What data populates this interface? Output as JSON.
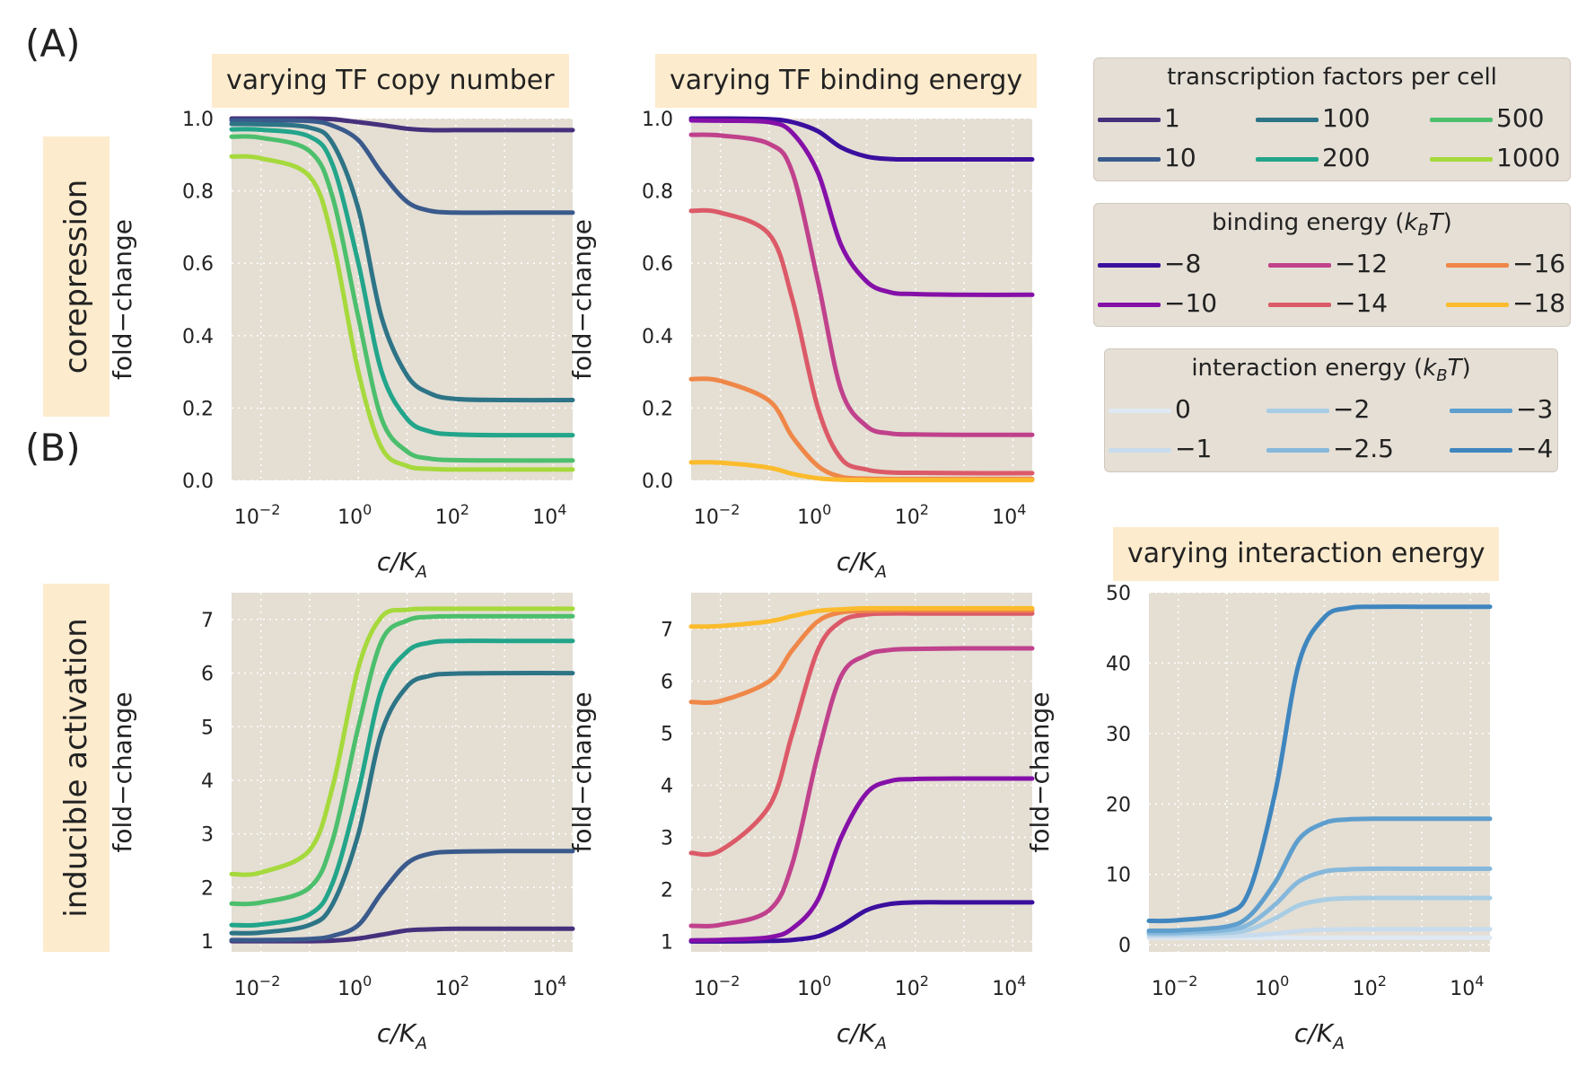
{
  "panel_labels": {
    "a": "(A)",
    "b": "(B)"
  },
  "row_labels": {
    "top": "corepression",
    "bottom": "inducible activation"
  },
  "column_titles": {
    "copy": "varying TF copy number",
    "binding": "varying TF binding energy",
    "interaction": "varying interaction energy"
  },
  "legends": {
    "tf": {
      "title": "transcription factors per cell",
      "items": [
        {
          "label": "1",
          "color": "#46307c"
        },
        {
          "label": "100",
          "color": "#2d7486"
        },
        {
          "label": "500",
          "color": "#4cbf6c"
        },
        {
          "label": "10",
          "color": "#3a5a8c"
        },
        {
          "label": "200",
          "color": "#22a58a"
        },
        {
          "label": "1000",
          "color": "#a6d93c"
        }
      ]
    },
    "binding": {
      "title": "binding energy (k_B T)",
      "title_pre": "binding energy (",
      "title_k": "k",
      "title_sub": "B",
      "title_t": "T",
      "title_post": ")",
      "items": [
        {
          "label": "−8",
          "color": "#3b0f9e"
        },
        {
          "label": "−12",
          "color": "#c0418c"
        },
        {
          "label": "−16",
          "color": "#ef8748"
        },
        {
          "label": "−10",
          "color": "#8510a8"
        },
        {
          "label": "−14",
          "color": "#dc5a68"
        },
        {
          "label": "−18",
          "color": "#fbbb2c"
        }
      ]
    },
    "interaction": {
      "title": "interaction energy (k_B T)",
      "title_pre": "interaction energy (",
      "title_k": "k",
      "title_sub": "B",
      "title_t": "T",
      "title_post": ")",
      "items": [
        {
          "label": "0",
          "color": "#dfe9f3"
        },
        {
          "label": "−2",
          "color": "#a8cde4"
        },
        {
          "label": "−3",
          "color": "#5e9ecd"
        },
        {
          "label": "−1",
          "color": "#c8dcee"
        },
        {
          "label": "−2.5",
          "color": "#86b8dc"
        },
        {
          "label": "−4",
          "color": "#3f86bf"
        }
      ]
    }
  },
  "chart_data": [
    {
      "id": "a1",
      "type": "line",
      "title": "varying TF copy number",
      "xlabel": "c/K_A",
      "ylabel": "fold−change",
      "xscale": "log",
      "xlim": [
        0.0025,
        25000
      ],
      "ylim": [
        0,
        1.0
      ],
      "yticks": [
        0.0,
        0.2,
        0.4,
        0.6,
        0.8,
        1.0
      ],
      "ytick_labels": [
        "0.0",
        "0.2",
        "0.4",
        "0.6",
        "0.8",
        "1.0"
      ],
      "xtick_exponents": [
        "−2",
        "0",
        "2",
        "4"
      ],
      "grid": true,
      "x": [
        0.0025,
        0.01,
        0.1,
        0.3,
        1,
        3,
        10,
        30,
        100,
        1000,
        25000
      ],
      "series": [
        {
          "name": "1",
          "color": "#46307c",
          "values": [
            1.0,
            1.0,
            1.0,
            0.998,
            0.99,
            0.982,
            0.972,
            0.968,
            0.968,
            0.968,
            0.968
          ]
        },
        {
          "name": "10",
          "color": "#3a5a8c",
          "values": [
            0.995,
            0.995,
            0.993,
            0.98,
            0.94,
            0.85,
            0.77,
            0.745,
            0.74,
            0.74,
            0.74
          ]
        },
        {
          "name": "100",
          "color": "#2d7486",
          "values": [
            0.985,
            0.984,
            0.975,
            0.93,
            0.75,
            0.45,
            0.29,
            0.24,
            0.225,
            0.222,
            0.222
          ]
        },
        {
          "name": "200",
          "color": "#22a58a",
          "values": [
            0.97,
            0.969,
            0.95,
            0.87,
            0.6,
            0.3,
            0.17,
            0.135,
            0.127,
            0.125,
            0.125
          ]
        },
        {
          "name": "500",
          "color": "#4cbf6c",
          "values": [
            0.95,
            0.947,
            0.91,
            0.78,
            0.45,
            0.17,
            0.08,
            0.06,
            0.056,
            0.055,
            0.055
          ]
        },
        {
          "name": "1000",
          "color": "#a6d93c",
          "values": [
            0.895,
            0.89,
            0.84,
            0.66,
            0.3,
            0.09,
            0.04,
            0.032,
            0.03,
            0.03,
            0.03
          ]
        }
      ]
    },
    {
      "id": "a2",
      "type": "line",
      "title": "varying TF binding energy",
      "xlabel": "c/K_A",
      "ylabel": "fold−change",
      "xscale": "log",
      "xlim": [
        0.0025,
        25000
      ],
      "ylim": [
        0,
        1.0
      ],
      "yticks": [
        0.0,
        0.2,
        0.4,
        0.6,
        0.8,
        1.0
      ],
      "ytick_labels": [
        "0.0",
        "0.2",
        "0.4",
        "0.6",
        "0.8",
        "1.0"
      ],
      "xtick_exponents": [
        "−2",
        "0",
        "2",
        "4"
      ],
      "grid": true,
      "x": [
        0.0025,
        0.01,
        0.1,
        0.3,
        1,
        3,
        10,
        30,
        100,
        1000,
        25000
      ],
      "series": [
        {
          "name": "−8",
          "color": "#3b0f9e",
          "values": [
            1.0,
            1.0,
            0.998,
            0.99,
            0.965,
            0.92,
            0.895,
            0.888,
            0.887,
            0.887,
            0.887
          ]
        },
        {
          "name": "−10",
          "color": "#8510a8",
          "values": [
            0.995,
            0.994,
            0.99,
            0.96,
            0.85,
            0.65,
            0.55,
            0.52,
            0.515,
            0.513,
            0.513
          ]
        },
        {
          "name": "−12",
          "color": "#c0418c",
          "values": [
            0.955,
            0.953,
            0.93,
            0.85,
            0.55,
            0.25,
            0.15,
            0.13,
            0.127,
            0.126,
            0.126
          ]
        },
        {
          "name": "−14",
          "color": "#dc5a68",
          "values": [
            0.745,
            0.74,
            0.68,
            0.5,
            0.2,
            0.06,
            0.03,
            0.022,
            0.021,
            0.02,
            0.02
          ]
        },
        {
          "name": "−16",
          "color": "#ef8748",
          "values": [
            0.28,
            0.275,
            0.22,
            0.12,
            0.04,
            0.01,
            0.005,
            0.004,
            0.004,
            0.004,
            0.004
          ]
        },
        {
          "name": "−18",
          "color": "#fbbb2c",
          "values": [
            0.05,
            0.049,
            0.035,
            0.018,
            0.006,
            0.002,
            0.001,
            0.001,
            0.001,
            0.001,
            0.001
          ]
        }
      ]
    },
    {
      "id": "b1",
      "type": "line",
      "xlabel": "c/K_A",
      "ylabel": "fold−change",
      "xscale": "log",
      "xlim": [
        0.0025,
        25000
      ],
      "ylim": [
        0.8,
        7.5
      ],
      "yticks": [
        1,
        2,
        3,
        4,
        5,
        6,
        7
      ],
      "ytick_labels": [
        "1",
        "2",
        "3",
        "4",
        "5",
        "6",
        "7"
      ],
      "xtick_exponents": [
        "−2",
        "0",
        "2",
        "4"
      ],
      "grid": true,
      "x": [
        0.0025,
        0.01,
        0.1,
        0.3,
        1,
        3,
        10,
        30,
        100,
        1000,
        25000
      ],
      "series": [
        {
          "name": "1",
          "color": "#46307c",
          "values": [
            1.0,
            1.0,
            1.0,
            1.01,
            1.05,
            1.12,
            1.2,
            1.22,
            1.23,
            1.23,
            1.23
          ]
        },
        {
          "name": "10",
          "color": "#3a5a8c",
          "values": [
            1.02,
            1.02,
            1.04,
            1.1,
            1.3,
            1.9,
            2.45,
            2.63,
            2.67,
            2.68,
            2.68
          ]
        },
        {
          "name": "100",
          "color": "#2d7486",
          "values": [
            1.15,
            1.16,
            1.3,
            1.7,
            3.0,
            4.9,
            5.75,
            5.95,
            5.99,
            6.0,
            6.0
          ]
        },
        {
          "name": "200",
          "color": "#22a58a",
          "values": [
            1.3,
            1.31,
            1.5,
            2.1,
            3.8,
            5.7,
            6.4,
            6.57,
            6.6,
            6.6,
            6.6
          ]
        },
        {
          "name": "500",
          "color": "#4cbf6c",
          "values": [
            1.7,
            1.72,
            2.0,
            2.9,
            5.0,
            6.6,
            6.98,
            7.05,
            7.06,
            7.06,
            7.06
          ]
        },
        {
          "name": "1000",
          "color": "#a6d93c",
          "values": [
            2.25,
            2.28,
            2.7,
            3.9,
            6.1,
            7.05,
            7.18,
            7.2,
            7.2,
            7.2,
            7.2
          ]
        }
      ]
    },
    {
      "id": "b2",
      "type": "line",
      "xlabel": "c/K_A",
      "ylabel": "fold−change",
      "xscale": "log",
      "xlim": [
        0.0025,
        25000
      ],
      "ylim": [
        0.8,
        7.7
      ],
      "yticks": [
        1,
        2,
        3,
        4,
        5,
        6,
        7
      ],
      "ytick_labels": [
        "1",
        "2",
        "3",
        "4",
        "5",
        "6",
        "7"
      ],
      "xtick_exponents": [
        "−2",
        "0",
        "2",
        "4"
      ],
      "grid": true,
      "x": [
        0.0025,
        0.01,
        0.1,
        0.3,
        1,
        3,
        10,
        30,
        100,
        1000,
        25000
      ],
      "series": [
        {
          "name": "−8",
          "color": "#3b0f9e",
          "values": [
            1.0,
            1.0,
            1.01,
            1.03,
            1.1,
            1.3,
            1.6,
            1.72,
            1.75,
            1.75,
            1.75
          ]
        },
        {
          "name": "−10",
          "color": "#8510a8",
          "values": [
            1.02,
            1.03,
            1.08,
            1.25,
            1.8,
            3.0,
            3.85,
            4.08,
            4.12,
            4.13,
            4.13
          ]
        },
        {
          "name": "−12",
          "color": "#c0418c",
          "values": [
            1.3,
            1.32,
            1.6,
            2.5,
            4.6,
            6.1,
            6.5,
            6.6,
            6.62,
            6.63,
            6.63
          ]
        },
        {
          "name": "−14",
          "color": "#dc5a68",
          "values": [
            2.7,
            2.75,
            3.6,
            5.0,
            6.6,
            7.15,
            7.28,
            7.3,
            7.3,
            7.3,
            7.3
          ]
        },
        {
          "name": "−16",
          "color": "#ef8748",
          "values": [
            5.6,
            5.62,
            6.0,
            6.6,
            7.15,
            7.32,
            7.35,
            7.36,
            7.36,
            7.36,
            7.36
          ]
        },
        {
          "name": "−18",
          "color": "#fbbb2c",
          "values": [
            7.05,
            7.06,
            7.15,
            7.25,
            7.35,
            7.38,
            7.4,
            7.4,
            7.4,
            7.4,
            7.4
          ]
        }
      ]
    },
    {
      "id": "b3",
      "type": "line",
      "title": "varying interaction energy",
      "xlabel": "c/K_A",
      "ylabel": "fold−change",
      "xscale": "log",
      "xlim": [
        0.0025,
        25000
      ],
      "ylim": [
        -1,
        50
      ],
      "yticks": [
        0,
        10,
        20,
        30,
        40,
        50
      ],
      "ytick_labels": [
        "0",
        "10",
        "20",
        "30",
        "40",
        "50"
      ],
      "xtick_exponents": [
        "−2",
        "0",
        "2",
        "4"
      ],
      "grid": true,
      "x": [
        0.0025,
        0.01,
        0.1,
        0.3,
        1,
        3,
        10,
        30,
        100,
        1000,
        25000
      ],
      "series": [
        {
          "name": "0",
          "color": "#dfe9f3",
          "values": [
            1.0,
            1.0,
            1.0,
            1.0,
            1.0,
            1.0,
            1.0,
            1.0,
            1.0,
            1.0,
            1.0
          ]
        },
        {
          "name": "−1",
          "color": "#c8dcee",
          "values": [
            1.2,
            1.2,
            1.25,
            1.35,
            1.6,
            1.95,
            2.15,
            2.2,
            2.2,
            2.2,
            2.2
          ]
        },
        {
          "name": "−2",
          "color": "#a8cde4",
          "values": [
            1.5,
            1.5,
            1.7,
            2.2,
            3.8,
            5.6,
            6.4,
            6.6,
            6.65,
            6.65,
            6.65
          ]
        },
        {
          "name": "−2.5",
          "color": "#86b8dc",
          "values": [
            1.7,
            1.72,
            2.1,
            3.0,
            5.8,
            9.0,
            10.4,
            10.7,
            10.8,
            10.8,
            10.8
          ]
        },
        {
          "name": "−3",
          "color": "#5e9ecd",
          "values": [
            2.0,
            2.05,
            2.6,
            4.2,
            9.0,
            15.0,
            17.3,
            17.8,
            17.9,
            17.9,
            17.9
          ]
        },
        {
          "name": "−4",
          "color": "#3f86bf",
          "values": [
            3.4,
            3.5,
            4.5,
            8.0,
            22.0,
            40.0,
            46.5,
            47.8,
            48.0,
            48.0,
            48.0
          ]
        }
      ]
    }
  ]
}
